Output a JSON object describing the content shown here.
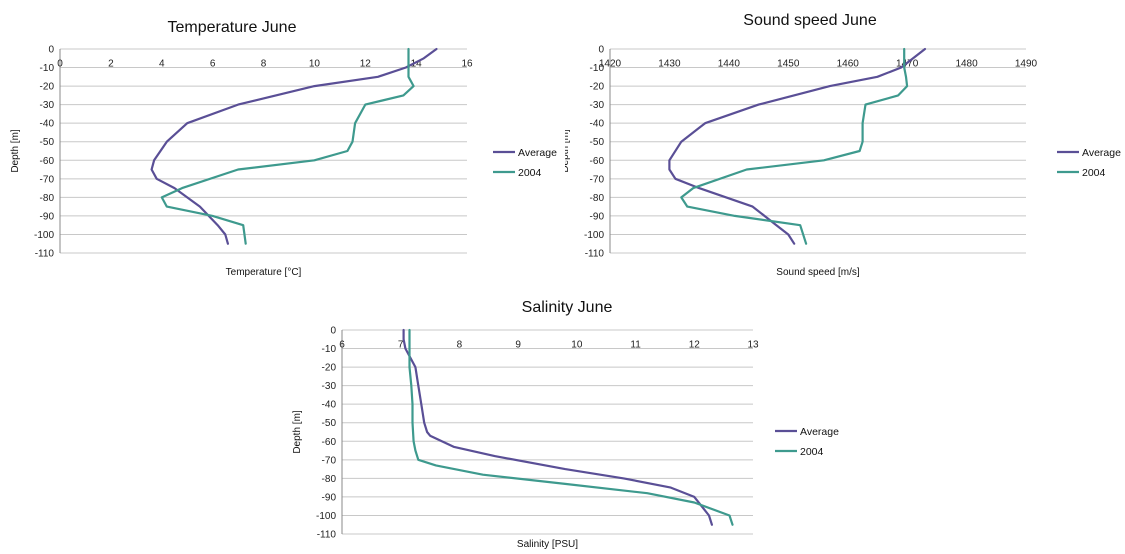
{
  "chart_data": [
    {
      "type": "line",
      "title": "Temperature June",
      "xlabel": "Temperature [°C]",
      "ylabel": "Depth [m]",
      "xlim": [
        0,
        16
      ],
      "ylim": [
        -110,
        0
      ],
      "xticks": [
        "0",
        "2",
        "4",
        "6",
        "8",
        "10",
        "12",
        "14",
        "16"
      ],
      "yticks": [
        "0",
        "-10",
        "-20",
        "-30",
        "-40",
        "-50",
        "-60",
        "-70",
        "-80",
        "-90",
        "-100",
        "-110"
      ],
      "grid": true,
      "legend": "right",
      "series": [
        {
          "name": "Average",
          "color": "#5a4f96",
          "x": [
            14.8,
            14.3,
            13.6,
            12.5,
            10.0,
            7.0,
            5.0,
            4.2,
            3.7,
            3.6,
            3.8,
            4.5,
            5.5,
            6.2,
            6.5,
            6.6
          ],
          "y": [
            0,
            -5,
            -10,
            -15,
            -20,
            -30,
            -40,
            -50,
            -60,
            -65,
            -70,
            -75,
            -85,
            -95,
            -100,
            -105
          ]
        },
        {
          "name": "2004",
          "color": "#3e9a8e",
          "x": [
            13.7,
            13.7,
            13.7,
            13.9,
            13.5,
            12.0,
            11.6,
            11.5,
            11.3,
            10.0,
            7.0,
            4.8,
            4.0,
            4.2,
            6.0,
            7.2,
            7.3
          ],
          "y": [
            0,
            -10,
            -15,
            -20,
            -25,
            -30,
            -40,
            -50,
            -55,
            -60,
            -65,
            -75,
            -80,
            -85,
            -90,
            -95,
            -105
          ]
        }
      ]
    },
    {
      "type": "line",
      "title": "Sound speed June",
      "xlabel": "Sound speed [m/s]",
      "ylabel": "Depth [m]",
      "xlim": [
        1420,
        1490
      ],
      "ylim": [
        -110,
        0
      ],
      "xticks": [
        "1420",
        "1430",
        "1440",
        "1450",
        "1460",
        "1470",
        "1480",
        "1490"
      ],
      "yticks": [
        "0",
        "-10",
        "-20",
        "-30",
        "-40",
        "-50",
        "-60",
        "-70",
        "-80",
        "-90",
        "-100",
        "-110"
      ],
      "grid": true,
      "legend": "right",
      "series": [
        {
          "name": "Average",
          "color": "#5a4f96",
          "x": [
            1473,
            1471,
            1469,
            1465,
            1457,
            1445,
            1436,
            1432,
            1430,
            1430,
            1431,
            1435,
            1444,
            1448,
            1450,
            1451
          ],
          "y": [
            0,
            -5,
            -10,
            -15,
            -20,
            -30,
            -40,
            -50,
            -60,
            -65,
            -70,
            -75,
            -85,
            -95,
            -100,
            -105
          ]
        },
        {
          "name": "2004",
          "color": "#3e9a8e",
          "x": [
            1469.5,
            1469.5,
            1469.8,
            1470,
            1468.5,
            1463,
            1462.5,
            1462.5,
            1462,
            1456,
            1443,
            1434,
            1432,
            1433,
            1441,
            1452,
            1453
          ],
          "y": [
            0,
            -10,
            -15,
            -20,
            -25,
            -30,
            -40,
            -50,
            -55,
            -60,
            -65,
            -75,
            -80,
            -85,
            -90,
            -95,
            -105
          ]
        }
      ]
    },
    {
      "type": "line",
      "title": "Salinity June",
      "xlabel": "Salinity [PSU]",
      "ylabel": "Depth [m]",
      "xlim": [
        6,
        13
      ],
      "ylim": [
        -110,
        0
      ],
      "xticks": [
        "6",
        "7",
        "8",
        "9",
        "10",
        "11",
        "12",
        "13"
      ],
      "yticks": [
        "0",
        "-10",
        "-20",
        "-30",
        "-40",
        "-50",
        "-60",
        "-70",
        "-80",
        "-90",
        "-100",
        "-110"
      ],
      "grid": true,
      "legend": "right",
      "series": [
        {
          "name": "Average",
          "color": "#5a4f96",
          "x": [
            7.05,
            7.05,
            7.08,
            7.25,
            7.3,
            7.35,
            7.4,
            7.45,
            7.5,
            7.9,
            8.6,
            9.8,
            10.8,
            11.6,
            12.0,
            12.25,
            12.3
          ],
          "y": [
            0,
            -5,
            -10,
            -20,
            -30,
            -40,
            -50,
            -55,
            -57,
            -63,
            -68,
            -75,
            -80,
            -85,
            -90,
            -100,
            -105
          ]
        },
        {
          "name": "2004",
          "color": "#3e9a8e",
          "x": [
            7.15,
            7.15,
            7.15,
            7.18,
            7.2,
            7.2,
            7.22,
            7.25,
            7.3,
            7.6,
            8.4,
            9.8,
            11.2,
            12.0,
            12.6,
            12.65
          ],
          "y": [
            0,
            -10,
            -20,
            -30,
            -40,
            -50,
            -60,
            -65,
            -70,
            -73,
            -78,
            -83,
            -88,
            -93,
            -100,
            -105
          ]
        }
      ]
    }
  ]
}
